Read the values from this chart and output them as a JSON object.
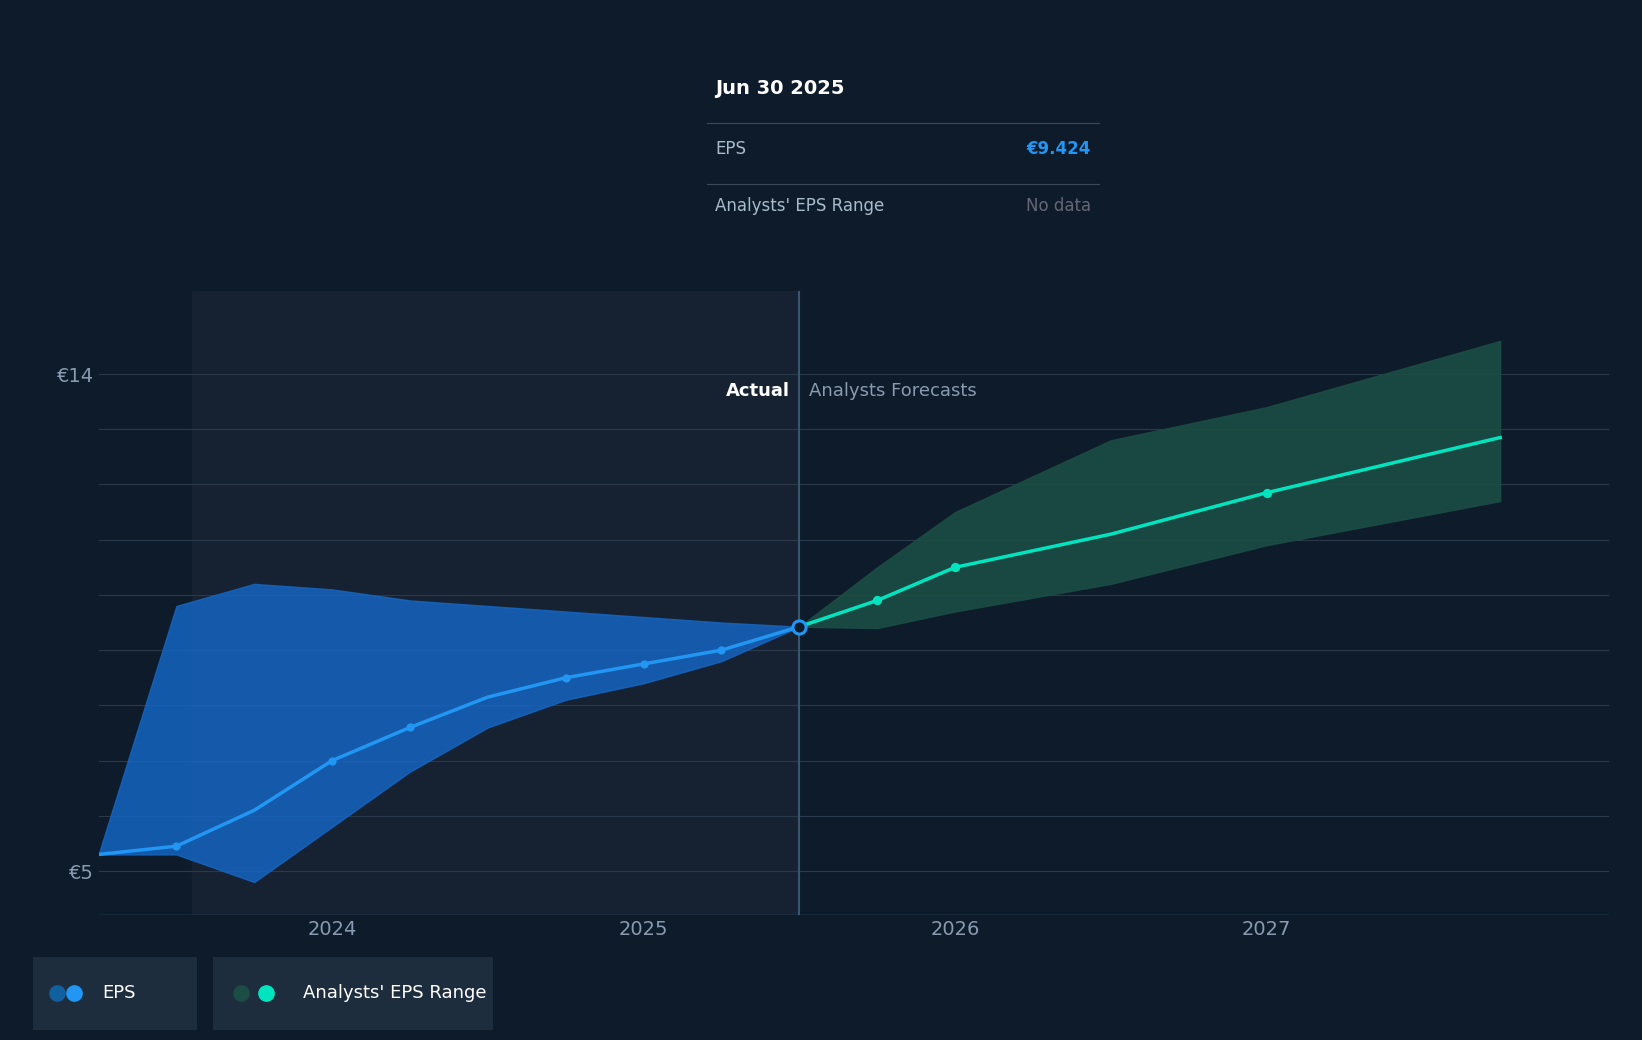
{
  "background_color": "#0d1b2a",
  "plot_bg_color": "#0d1b2a",
  "grid_color": "#2a3a4a",
  "tooltip": {
    "date": "Jun 30 2025",
    "eps_label": "EPS",
    "eps_value": "€9.424",
    "range_label": "Analysts' EPS Range",
    "range_value": "No data"
  },
  "divider_x": 2025.5,
  "actual_label": "Actual",
  "forecast_label": "Analysts Forecasts",
  "ylim": [
    4.2,
    15.5
  ],
  "yticks": [
    5.0,
    14.0
  ],
  "ytick_labels": [
    "€5",
    "€14"
  ],
  "xticks": [
    2024.0,
    2025.0,
    2026.0,
    2027.0
  ],
  "xtick_labels": [
    "2024",
    "2025",
    "2026",
    "2027"
  ],
  "eps_line_color": "#2196f3",
  "eps_band_color": "#1565c0",
  "forecast_line_color": "#00e5c0",
  "forecast_band_color": "#1b4d44",
  "eps_x": [
    2023.25,
    2023.5,
    2023.75,
    2024.0,
    2024.25,
    2024.5,
    2024.75,
    2025.0,
    2025.25,
    2025.5
  ],
  "eps_y": [
    5.3,
    5.45,
    6.1,
    7.0,
    7.6,
    8.15,
    8.5,
    8.75,
    9.0,
    9.424
  ],
  "eps_band_upper": [
    5.3,
    9.8,
    10.2,
    10.1,
    9.9,
    9.8,
    9.7,
    9.6,
    9.5,
    9.424
  ],
  "eps_band_lower": [
    5.3,
    5.3,
    4.8,
    5.8,
    6.8,
    7.6,
    8.1,
    8.4,
    8.8,
    9.424
  ],
  "forecast_x": [
    2025.5,
    2025.75,
    2026.0,
    2026.5,
    2027.0,
    2027.75
  ],
  "forecast_y": [
    9.424,
    9.9,
    10.5,
    11.1,
    11.85,
    12.85
  ],
  "forecast_band_upper": [
    9.424,
    10.5,
    11.5,
    12.8,
    13.4,
    14.6
  ],
  "forecast_band_lower": [
    9.424,
    9.4,
    9.7,
    10.2,
    10.9,
    11.7
  ],
  "actual_shade_start": 2023.55,
  "actual_shade_end": 2025.5,
  "xlim_start": 2023.25,
  "xlim_end": 2028.1,
  "legend_eps_label": "EPS",
  "legend_range_label": "Analysts' EPS Range"
}
